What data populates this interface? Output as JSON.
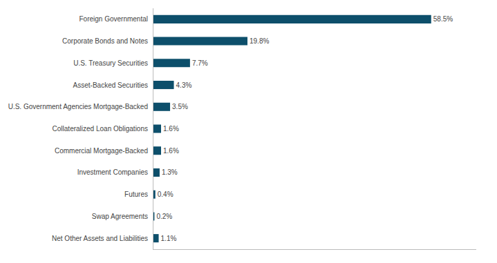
{
  "chart_data": {
    "type": "bar",
    "orientation": "horizontal",
    "categories": [
      "Foreign Governmental",
      "Corporate Bonds and Notes",
      "U.S. Treasury Securities",
      "Asset-Backed Securities",
      "U.S. Government Agencies Mortgage-Backed",
      "Collateralized Loan Obligations",
      "Commercial Mortgage-Backed",
      "Investment Companies",
      "Futures",
      "Swap Agreements",
      "Net Other Assets and Liabilities"
    ],
    "values": [
      58.5,
      19.8,
      7.7,
      4.3,
      3.5,
      1.6,
      1.6,
      1.3,
      0.4,
      0.2,
      1.1
    ],
    "value_labels": [
      "58.5%",
      "19.8%",
      "7.7%",
      "4.3%",
      "3.5%",
      "1.6%",
      "1.6%",
      "1.3%",
      "0.4%",
      "0.2%",
      "1.1%"
    ],
    "color": "#0d4f6b",
    "xlim": [
      0,
      68
    ],
    "data_labels": true,
    "tick_labels": "y",
    "grid": false
  }
}
